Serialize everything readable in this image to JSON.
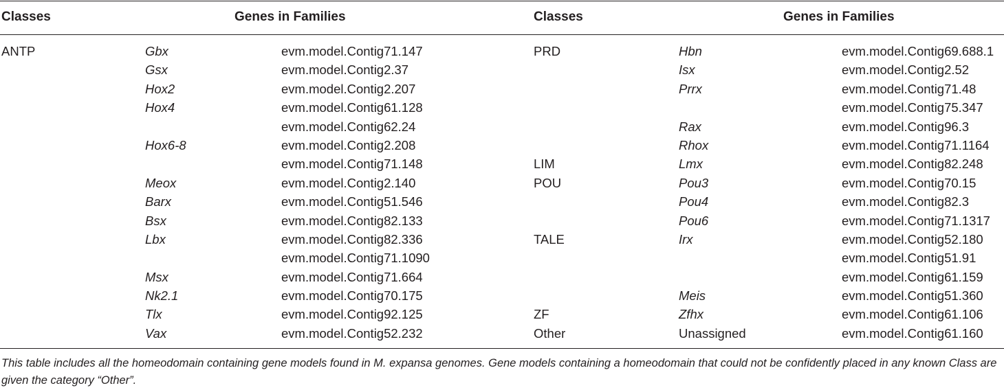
{
  "headers": {
    "classes_left": "Classes",
    "genes_left": "Genes in Families",
    "classes_right": "Classes",
    "genes_right": "Genes in Families"
  },
  "rows": [
    {
      "class1": "ANTP",
      "family1": "Gbx",
      "model1": "evm.model.Contig71.147",
      "class2": "PRD",
      "family2": "Hbn",
      "model2": "evm.model.Contig69.688.1"
    },
    {
      "class1": "",
      "family1": "Gsx",
      "model1": "evm.model.Contig2.37",
      "class2": "",
      "family2": "Isx",
      "model2": "evm.model.Contig2.52"
    },
    {
      "class1": "",
      "family1": "Hox2",
      "model1": "evm.model.Contig2.207",
      "class2": "",
      "family2": "Prrx",
      "model2": "evm.model.Contig71.48"
    },
    {
      "class1": "",
      "family1": "Hox4",
      "model1": "evm.model.Contig61.128",
      "class2": "",
      "family2": "",
      "model2": "evm.model.Contig75.347"
    },
    {
      "class1": "",
      "family1": "",
      "model1": "evm.model.Contig62.24",
      "class2": "",
      "family2": "Rax",
      "model2": "evm.model.Contig96.3"
    },
    {
      "class1": "",
      "family1": "Hox6-8",
      "model1": "evm.model.Contig2.208",
      "class2": "",
      "family2": "Rhox",
      "model2": "evm.model.Contig71.1164"
    },
    {
      "class1": "",
      "family1": "",
      "model1": "evm.model.Contig71.148",
      "class2": "LIM",
      "family2": "Lmx",
      "model2": "evm.model.Contig82.248"
    },
    {
      "class1": "",
      "family1": "Meox",
      "model1": "evm.model.Contig2.140",
      "class2": "POU",
      "family2": "Pou3",
      "model2": "evm.model.Contig70.15"
    },
    {
      "class1": "",
      "family1": "Barx",
      "model1": "evm.model.Contig51.546",
      "class2": "",
      "family2": "Pou4",
      "model2": "evm.model.Contig82.3"
    },
    {
      "class1": "",
      "family1": "Bsx",
      "model1": "evm.model.Contig82.133",
      "class2": "",
      "family2": "Pou6",
      "model2": "evm.model.Contig71.1317"
    },
    {
      "class1": "",
      "family1": "Lbx",
      "model1": "evm.model.Contig82.336",
      "class2": "TALE",
      "family2": "Irx",
      "model2": "evm.model.Contig52.180"
    },
    {
      "class1": "",
      "family1": "",
      "model1": "evm.model.Contig71.1090",
      "class2": "",
      "family2": "",
      "model2": "evm.model.Contig51.91"
    },
    {
      "class1": "",
      "family1": "Msx",
      "model1": "evm.model.Contig71.664",
      "class2": "",
      "family2": "",
      "model2": "evm.model.Contig61.159"
    },
    {
      "class1": "",
      "family1": "Nk2.1",
      "model1": "evm.model.Contig70.175",
      "class2": "",
      "family2": "Meis",
      "model2": "evm.model.Contig51.360"
    },
    {
      "class1": "",
      "family1": "Tlx",
      "model1": "evm.model.Contig92.125",
      "class2": "ZF",
      "family2": "Zfhx",
      "model2": "evm.model.Contig61.106"
    },
    {
      "class1": "",
      "family1": "Vax",
      "model1": "evm.model.Contig52.232",
      "class2": "Other",
      "family2": "Unassigned",
      "model2": "evm.model.Contig61.160"
    }
  ],
  "footnote": "This table includes all the homeodomain containing gene models found in M. expansa genomes. Gene models containing a homeodomain that could not be confidently placed in any known Class are given the category “Other”."
}
